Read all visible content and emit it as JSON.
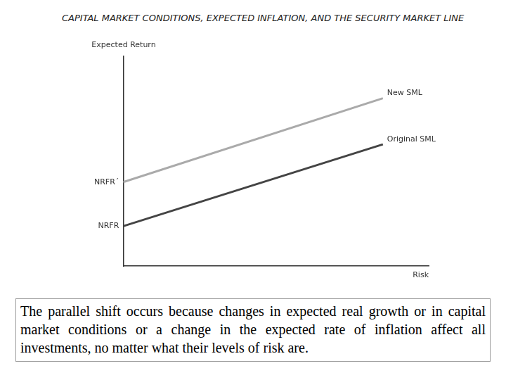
{
  "chart_data": {
    "type": "line",
    "title": "CAPITAL MARKET CONDITIONS, EXPECTED INFLATION, AND THE SECURITY MARKET LINE",
    "y_label": "Expected Return",
    "x_label": "Risk",
    "caption": "The parallel shift occurs because changes in expected real growth or in capital market conditions or a change in the expected rate of inflation affect all investments, no matter what their levels of risk are.",
    "x": [
      0,
      85
    ],
    "series": [
      {
        "name": "New SML",
        "color": "#aaaaaa",
        "values": [
          40,
          80
        ]
      },
      {
        "name": "Original SML",
        "color": "#444444",
        "values": [
          19,
          58
        ]
      }
    ],
    "xlim": [
      0,
      100
    ],
    "ylim": [
      0,
      100
    ],
    "yticks": [
      {
        "value": 19,
        "label": "NRFR"
      },
      {
        "value": 40,
        "label": "NRFR´"
      }
    ],
    "tick_labels": "y",
    "grid": false
  }
}
